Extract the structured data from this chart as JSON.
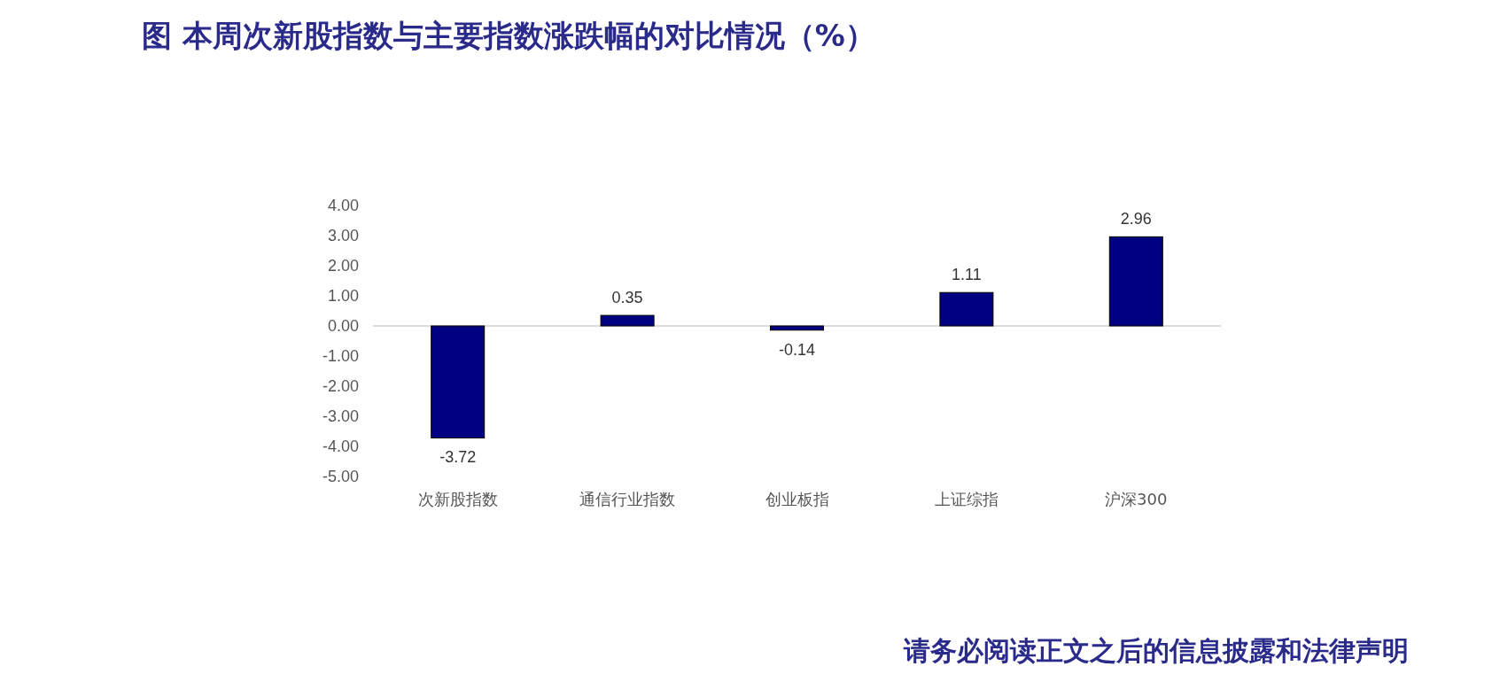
{
  "chart_data": {
    "type": "bar",
    "title": "图 本周次新股指数与主要指数涨跌幅的对比情况（%）",
    "categories": [
      "次新股指数",
      "通信行业指数",
      "创业板指",
      "上证综指",
      "沪深300"
    ],
    "values": [
      -3.72,
      0.35,
      -0.14,
      1.11,
      2.96
    ],
    "color": "#000080",
    "data_labels": true,
    "ylim": [
      -5,
      4
    ],
    "yticks": [
      {
        "value": 4,
        "label": "4.00"
      },
      {
        "value": 3,
        "label": "3.00"
      },
      {
        "value": 2,
        "label": "2.00"
      },
      {
        "value": 1,
        "label": "1.00"
      },
      {
        "value": 0,
        "label": "0.00"
      },
      {
        "value": -1,
        "label": "-1.00"
      },
      {
        "value": -2,
        "label": "-2.00"
      },
      {
        "value": -3,
        "label": "-3.00"
      },
      {
        "value": -4,
        "label": "-4.00"
      },
      {
        "value": -5,
        "label": "-5.00"
      }
    ],
    "annotations": [
      "请务必阅读正文之后的信息披露和法律声明"
    ]
  }
}
